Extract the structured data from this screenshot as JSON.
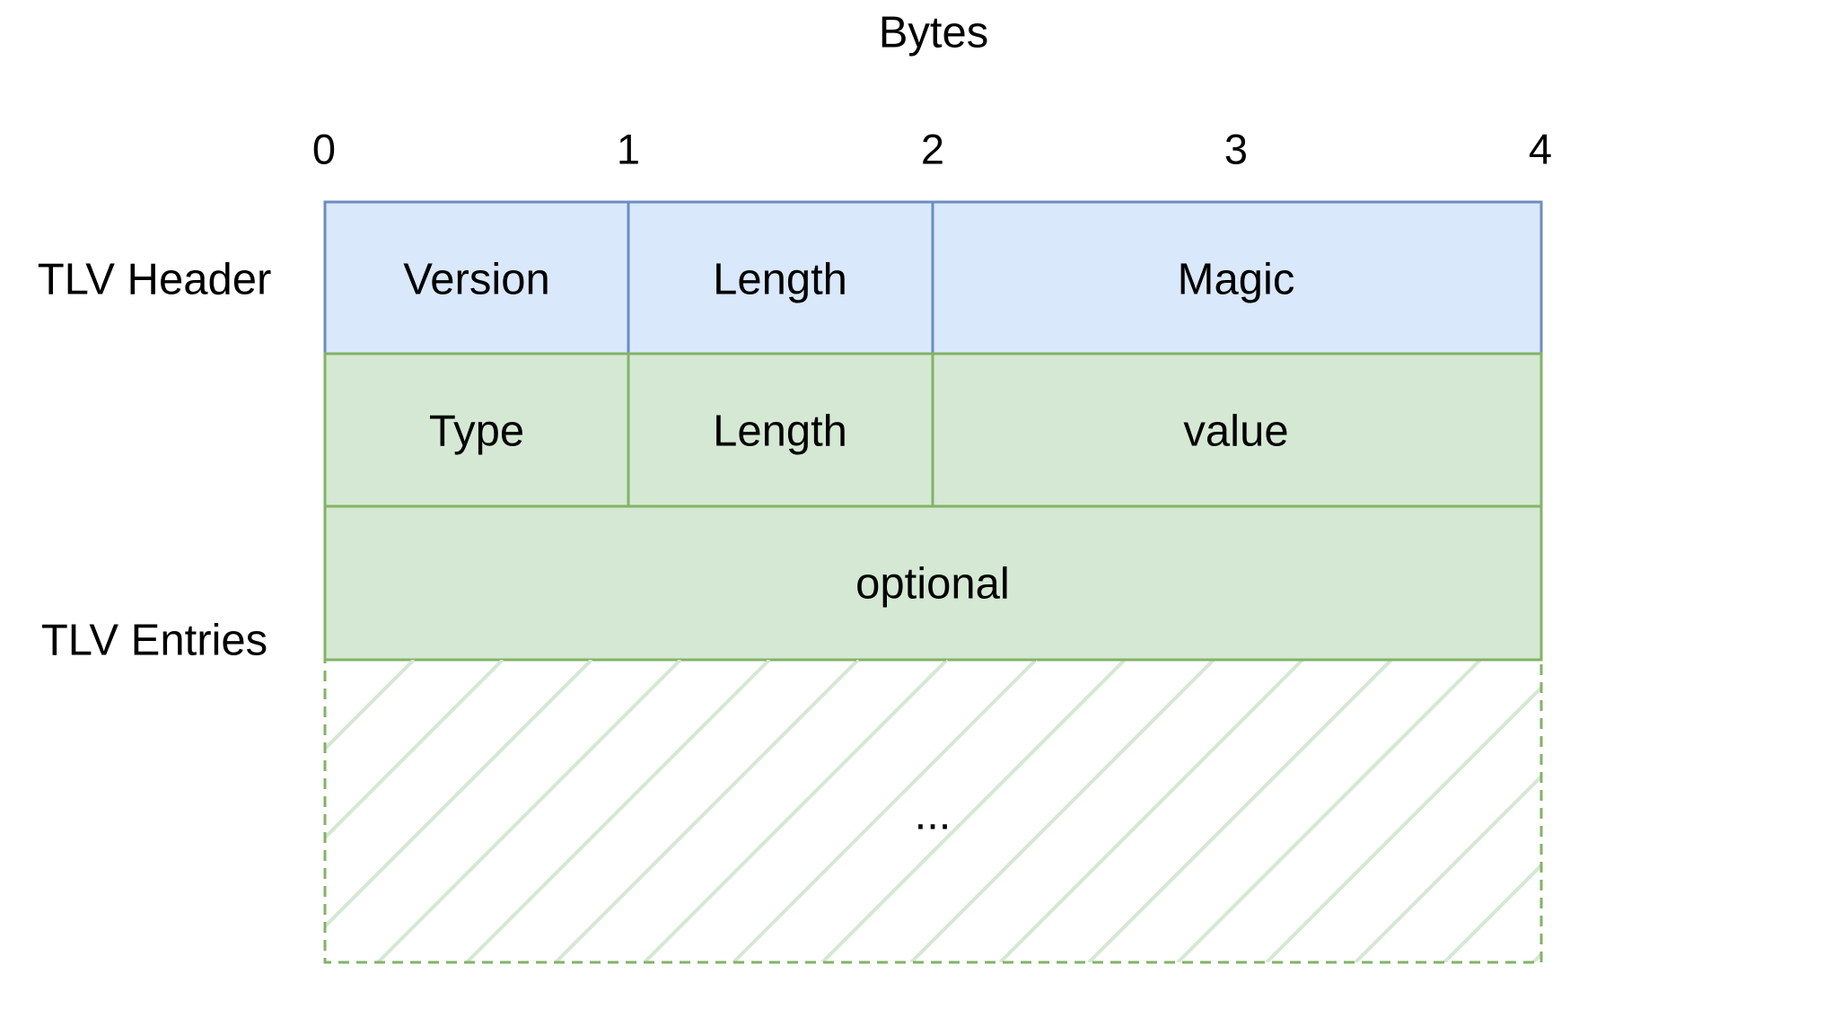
{
  "axis": {
    "title": "Bytes",
    "ticks": [
      "0",
      "1",
      "2",
      "3",
      "4"
    ]
  },
  "rows": {
    "header_label": "TLV Header",
    "entries_label": "TLV Entries"
  },
  "header_cells": {
    "version": "Version",
    "length": "Length",
    "magic": "Magic"
  },
  "entry_cells": {
    "type": "Type",
    "length": "Length",
    "value": "value",
    "optional": "optional",
    "more": "..."
  },
  "colors": {
    "header_fill": "#dae8fc",
    "header_stroke": "#6c8ebf",
    "entry_fill": "#d5e8d4",
    "entry_stroke": "#82b366",
    "hatch": "#d5e8d4"
  }
}
